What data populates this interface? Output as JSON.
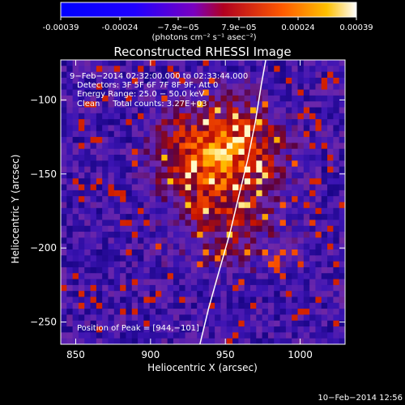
{
  "colorbar": {
    "ticks": [
      "-0.00039",
      "-0.00024",
      "−7.9e−05",
      "7.9e−05",
      "0.00024",
      "0.00039"
    ],
    "unit_label": "(photons cm⁻² s⁻¹ asec⁻²)"
  },
  "plot": {
    "title": "Reconstructed RHESSI Image",
    "xlabel": "Heliocentric X (arcsec)",
    "ylabel": "Heliocentric Y (arcsec)",
    "xticks": [
      "850",
      "900",
      "950",
      "1000"
    ],
    "yticks": [
      "−100",
      "−150",
      "−200",
      "−250"
    ]
  },
  "annotations": {
    "line1": "9−Feb−2014 02:32:00.000 to 02:33:44.000",
    "line2": "Detectors: 3F 5F 6F 7F 8F 9F, Att 0",
    "line3": "Energy Range: 25.0 − 50.0 keV",
    "line4": "Clean     Total counts: 3.27E+03",
    "peak": "Position of Peak = [944,−101]"
  },
  "footer": {
    "timestamp": "10−Feb−2014 12:56"
  },
  "chart_data": {
    "type": "heatmap",
    "title": "Reconstructed RHESSI Image",
    "xlabel": "Heliocentric X (arcsec)",
    "ylabel": "Heliocentric Y (arcsec)",
    "xlim": [
      840,
      1030
    ],
    "ylim": [
      -265,
      -73
    ],
    "colorbar_range": [
      -0.00039,
      0.00039
    ],
    "peak": [
      944,
      -101
    ],
    "limb_curve": [
      [
        933,
        -265
      ],
      [
        939,
        -240
      ],
      [
        946,
        -215
      ],
      [
        953,
        -190
      ],
      [
        959,
        -165
      ],
      [
        965,
        -140
      ],
      [
        970,
        -115
      ],
      [
        974,
        -90
      ],
      [
        977,
        -73
      ]
    ]
  }
}
